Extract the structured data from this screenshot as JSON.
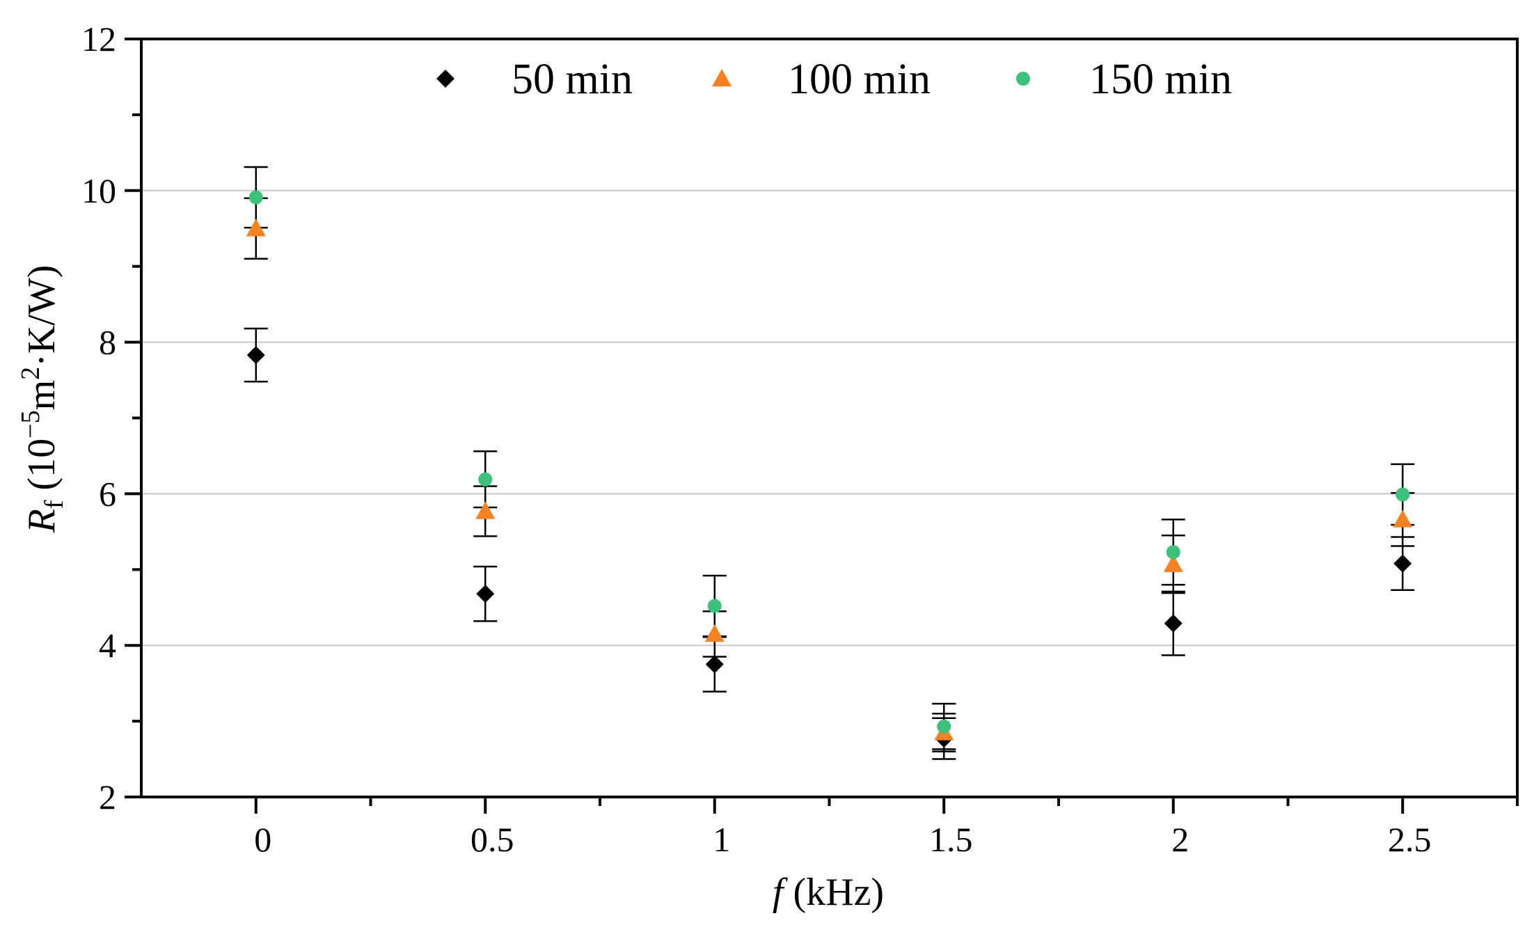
{
  "chart_data": {
    "type": "scatter",
    "title": "",
    "xlabel": {
      "symbol": "f",
      "unit": " (kHz)"
    },
    "ylabel": {
      "symbol": "R",
      "subscript": "f",
      "unit_prefix": " (10",
      "unit_exp": "−5",
      "unit_mid": "m",
      "unit_exp2": "2",
      "unit_suffix": "·K/W)"
    },
    "xlim": [
      -0.25,
      2.75
    ],
    "ylim": [
      2,
      12
    ],
    "x_ticks": [
      0,
      0.5,
      1,
      1.5,
      2,
      2.5
    ],
    "x_tick_labels": [
      "0",
      "0.5",
      "1",
      "1.5",
      "2",
      "2.5"
    ],
    "x_minor_ticks": [
      0.25,
      0.75,
      1.25,
      1.75,
      2.25,
      2.75
    ],
    "y_ticks": [
      2,
      4,
      6,
      8,
      10,
      12
    ],
    "y_tick_labels": [
      "2",
      "4",
      "6",
      "8",
      "10",
      "12"
    ],
    "y_minor_ticks": [
      3,
      5,
      7,
      9,
      11
    ],
    "y_gridlines": [
      4,
      6,
      8,
      10
    ],
    "x": [
      0,
      0.5,
      1,
      1.5,
      2,
      2.5
    ],
    "legend_position": "top-center",
    "series": [
      {
        "name": "50 min",
        "marker": "diamond",
        "color": "#000000",
        "values": [
          7.83,
          4.68,
          3.75,
          2.77,
          4.29,
          5.08
        ],
        "errors": [
          0.35,
          0.36,
          0.36,
          0.27,
          0.42,
          0.35
        ]
      },
      {
        "name": "100 min",
        "marker": "triangle",
        "color": "#F58220",
        "values": [
          9.5,
          5.77,
          4.15,
          2.85,
          5.07,
          5.66
        ],
        "errors": [
          0.4,
          0.33,
          0.3,
          0.25,
          0.38,
          0.35
        ]
      },
      {
        "name": "150 min",
        "marker": "circle",
        "color": "#3CC17A",
        "values": [
          9.91,
          6.19,
          4.52,
          2.93,
          5.23,
          5.99
        ],
        "errors": [
          0.4,
          0.37,
          0.4,
          0.3,
          0.43,
          0.4
        ]
      }
    ]
  }
}
